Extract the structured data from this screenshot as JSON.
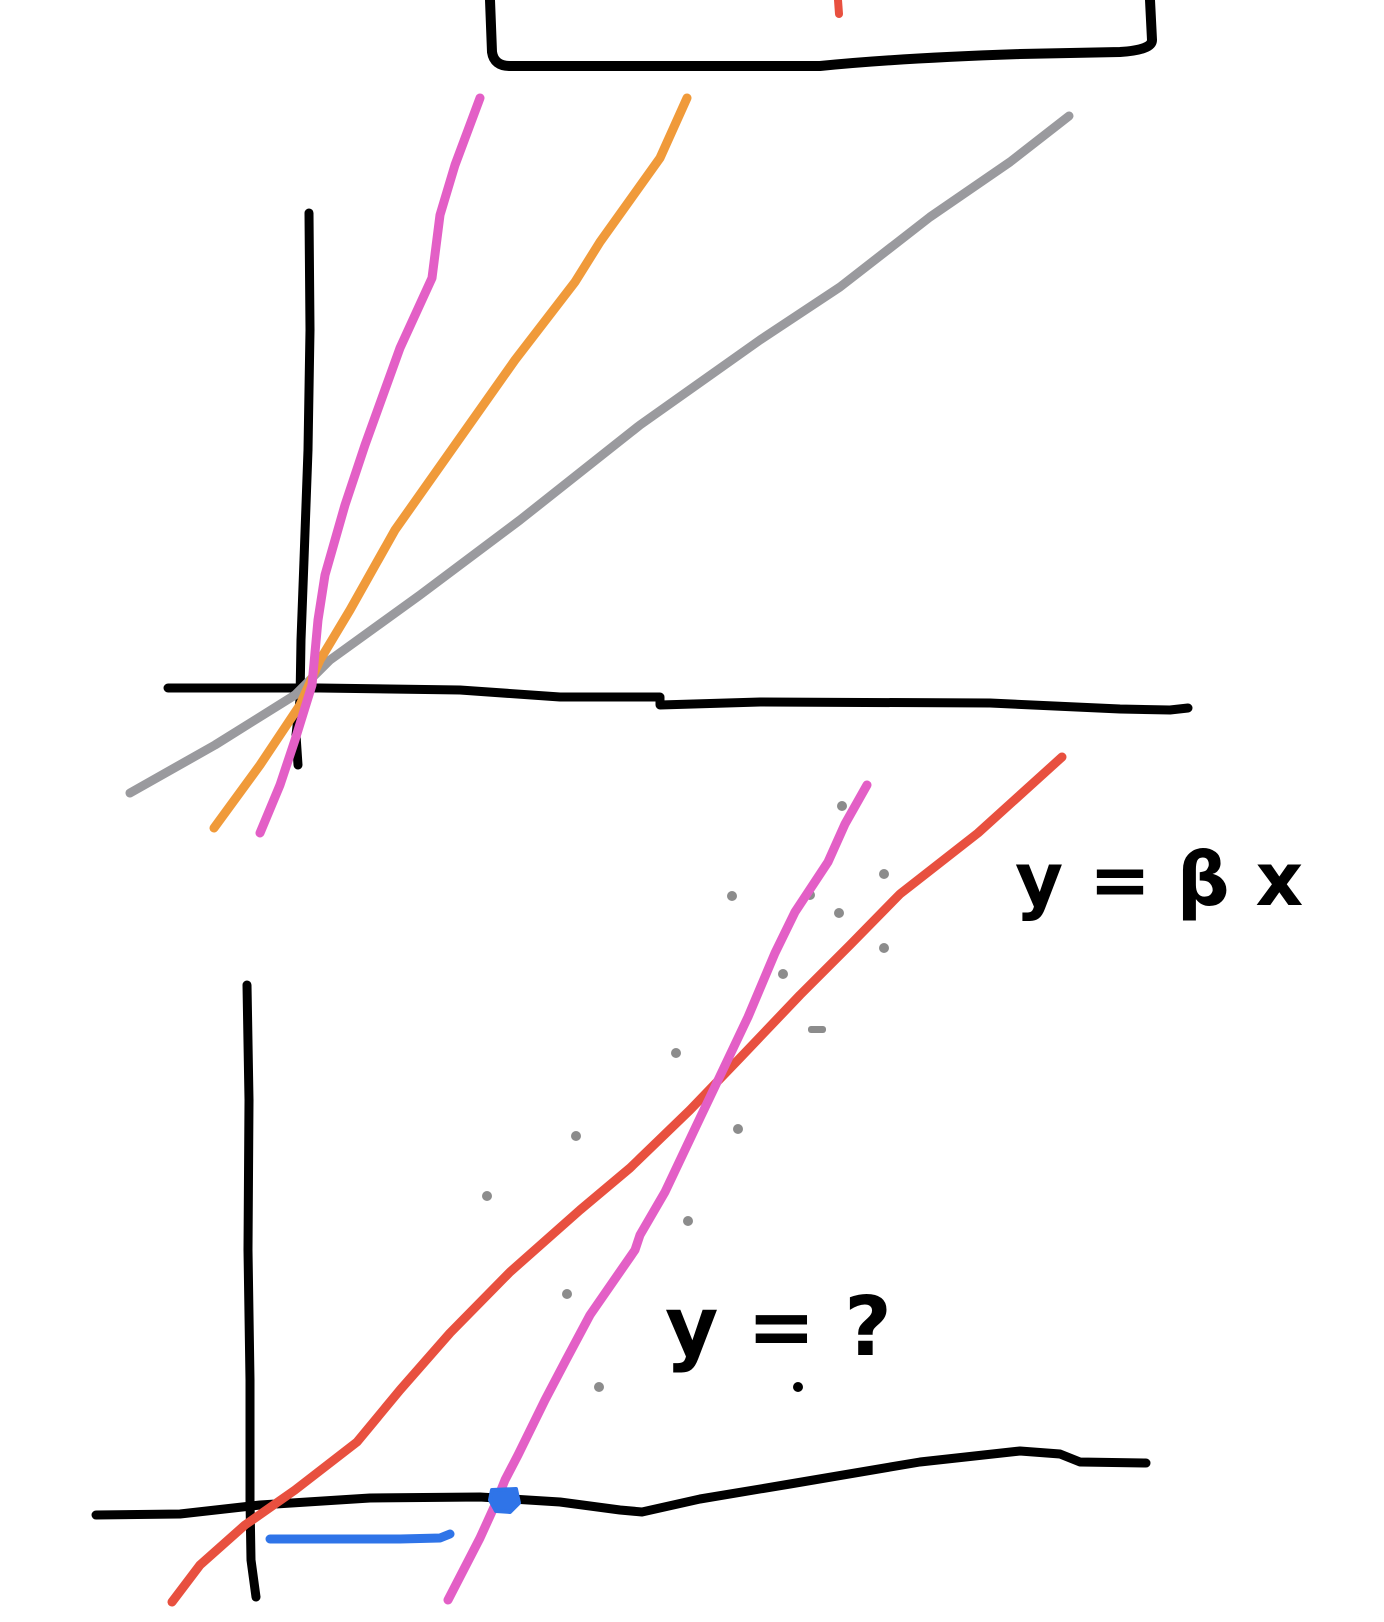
{
  "colors": {
    "ink": "#000000",
    "pink": "#e35fc6",
    "orange": "#f09a3a",
    "gray": "#9a9a9e",
    "red": "#e8503f",
    "blue": "#2f74e8",
    "dot": "#8c8c8c"
  },
  "lower_diagram": {
    "equation_fitted": "y = β x",
    "equation_unknown": "y = ?"
  }
}
